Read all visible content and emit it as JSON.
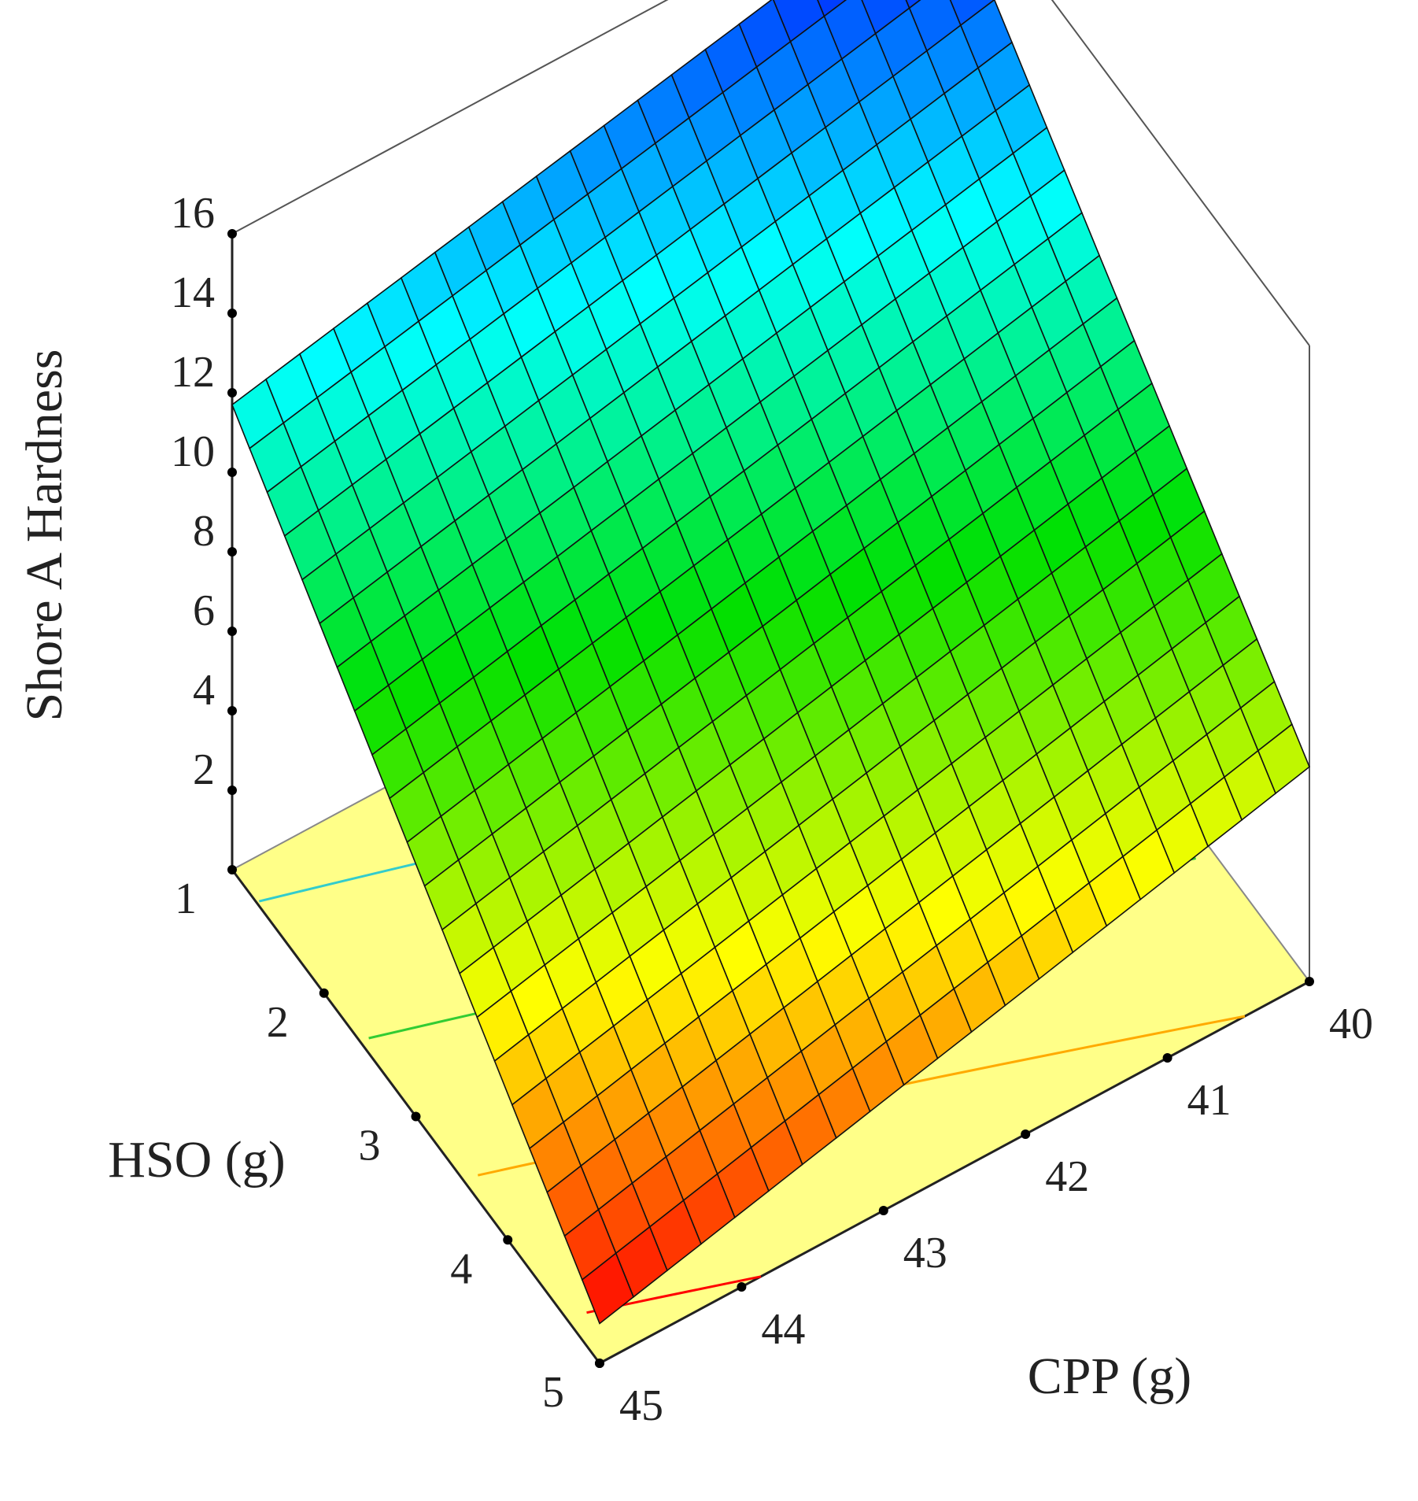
{
  "chart_data": {
    "type": "surface",
    "title": "",
    "zlabel": "Shore A Hardness",
    "ylabel": "HSO (g)",
    "xlabel": "CPP (g)",
    "z_ticks": [
      "16",
      "14",
      "12",
      "10",
      "8",
      "6",
      "4",
      "2"
    ],
    "hso_ticks": [
      "1",
      "2",
      "3",
      "4",
      "5"
    ],
    "cpp_ticks": [
      "40",
      "41",
      "42",
      "43",
      "44",
      "45"
    ],
    "hso_range": [
      1,
      5
    ],
    "cpp_range": [
      40,
      45
    ],
    "z_range": [
      0,
      16
    ],
    "surface_corners": [
      {
        "hso": 1,
        "cpp": 45,
        "hardness": 11.7
      },
      {
        "hso": 1,
        "cpp": 40,
        "hardness": 15.5
      },
      {
        "hso": 5,
        "cpp": 40,
        "hardness": 5.4
      },
      {
        "hso": 5,
        "cpp": 45,
        "hardness": 1.0
      }
    ],
    "grid_divisions": 21,
    "colormap": [
      "#ff0000",
      "#ffff00",
      "#00e000",
      "#00ffff",
      "#0000ff"
    ],
    "floor_color": "#ffff88",
    "contour_colors": [
      "#3399ff",
      "#33cccc",
      "#33cc33",
      "#ffaa00",
      "#ff0000"
    ]
  }
}
